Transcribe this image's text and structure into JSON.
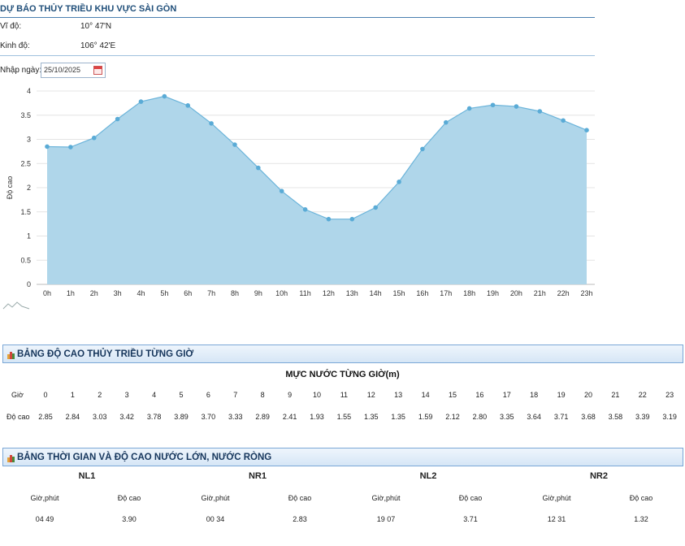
{
  "header": {
    "title": "DỰ BÁO THỦY TRIỀU KHU VỰC SÀI GÒN",
    "latitude_label": "Vĩ độ:",
    "latitude_value": "10° 47'N",
    "longitude_label": "Kinh độ:",
    "longitude_value": "106° 42'E"
  },
  "date_input": {
    "label": "Nhập ngày:",
    "value": "25/10/2025"
  },
  "chart_data": {
    "type": "area",
    "x": [
      "0h",
      "1h",
      "2h",
      "3h",
      "4h",
      "5h",
      "6h",
      "7h",
      "8h",
      "9h",
      "10h",
      "11h",
      "12h",
      "13h",
      "14h",
      "15h",
      "16h",
      "17h",
      "18h",
      "19h",
      "20h",
      "21h",
      "22h",
      "23h"
    ],
    "values": [
      2.85,
      2.84,
      3.03,
      3.42,
      3.78,
      3.89,
      3.7,
      3.33,
      2.89,
      2.41,
      1.93,
      1.55,
      1.35,
      1.35,
      1.59,
      2.12,
      2.8,
      3.35,
      3.64,
      3.71,
      3.68,
      3.58,
      3.39,
      3.19
    ],
    "ylabel": "Độ cao",
    "yticks": [
      "0",
      "0.5",
      "1",
      "1.5",
      "2",
      "2.5",
      "3",
      "3.5",
      "4"
    ],
    "ylim": [
      0,
      4
    ],
    "grid": true,
    "colors": {
      "fill": "#afd6ea",
      "line": "#6bb4da",
      "marker": "#5aabd6"
    }
  },
  "hourly_table": {
    "section_title": "BẢNG ĐỘ CAO THỦY TRIỀU TỪNG GIỜ",
    "table_title": "MỰC NƯỚC TỪNG GIỜ(m)",
    "hour_label": "Giờ",
    "height_label": "Độ cao",
    "hours": [
      "0",
      "1",
      "2",
      "3",
      "4",
      "5",
      "6",
      "7",
      "8",
      "9",
      "10",
      "11",
      "12",
      "13",
      "14",
      "15",
      "16",
      "17",
      "18",
      "19",
      "20",
      "21",
      "22",
      "23"
    ],
    "heights": [
      "2.85",
      "2.84",
      "3.03",
      "3.42",
      "3.78",
      "3.89",
      "3.70",
      "3.33",
      "2.89",
      "2.41",
      "1.93",
      "1.55",
      "1.35",
      "1.35",
      "1.59",
      "2.12",
      "2.80",
      "3.35",
      "3.64",
      "3.71",
      "3.68",
      "3.58",
      "3.39",
      "3.19"
    ]
  },
  "high_low_table": {
    "section_title": "BẢNG THỜI GIAN VÀ ĐỘ CAO NƯỚC LỚN, NƯỚC RÒNG",
    "groups": [
      {
        "name": "NL1",
        "time_label": "Giờ,phút",
        "height_label": "Độ cao",
        "time": "04 49",
        "height": "3.90"
      },
      {
        "name": "NR1",
        "time_label": "Giờ,phút",
        "height_label": "Độ cao",
        "time": "00 34",
        "height": "2.83"
      },
      {
        "name": "NL2",
        "time_label": "Giờ,phút",
        "height_label": "Độ cao",
        "time": "19 07",
        "height": "3.71"
      },
      {
        "name": "NR2",
        "time_label": "Giờ,phút",
        "height_label": "Độ cao",
        "time": "12 31",
        "height": "1.32"
      }
    ]
  },
  "colors": {
    "accent": "#1f4e79",
    "section_border": "#7aa7d6"
  }
}
